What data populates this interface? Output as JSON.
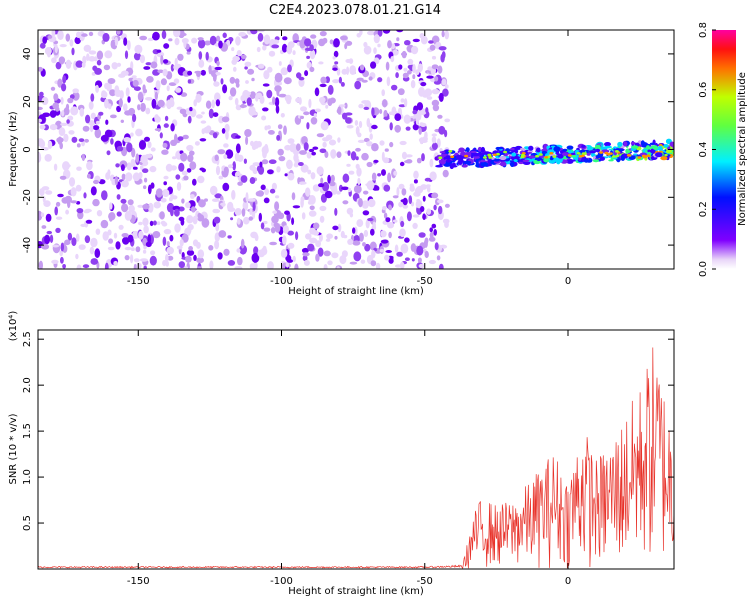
{
  "title": "C2E4.2023.078.01.21.G14",
  "chart_data": [
    {
      "type": "heatmap",
      "xlabel": "Height of straight line (km)",
      "ylabel": "Frequency (Hz)",
      "xlim": [
        -185,
        37
      ],
      "ylim": [
        -50,
        50
      ],
      "xticks": [
        -150,
        -100,
        -50,
        0
      ],
      "yticks": [
        40,
        20,
        0,
        -20,
        -40
      ],
      "colorbar": {
        "label": "Normalized spectral amplitude",
        "range": [
          0.0,
          0.8
        ],
        "ticks": [
          "0.0",
          "0.2",
          "0.4",
          "0.6",
          "0.8"
        ]
      },
      "regions": [
        {
          "x_range": [
            -185,
            -45
          ],
          "y_range": [
            -50,
            50
          ],
          "description": "noise",
          "amplitude_range": [
            0.0,
            0.1
          ]
        },
        {
          "x_range": [
            -45,
            37
          ],
          "y_center_start": -4,
          "y_center_end": 0,
          "description": "signal band",
          "amplitude_range": [
            0.1,
            0.8
          ]
        }
      ]
    },
    {
      "type": "line",
      "xlabel": "Height of straight line (km)",
      "ylabel": "SNR (10 * v/v)",
      "y_multiplier": "(x10⁴)",
      "xlim": [
        -185,
        37
      ],
      "ylim": [
        0,
        2.6
      ],
      "xticks": [
        -150,
        -100,
        -50,
        0
      ],
      "yticks": [
        "0.5",
        "1.0",
        "1.5",
        "2.0",
        "2.5"
      ],
      "series": [
        {
          "color": "#e8332b",
          "x": [
            -185,
            -150,
            -100,
            -50,
            -37,
            -35,
            -33,
            -30,
            -25,
            -20,
            -15,
            -10,
            -5,
            0,
            5,
            10,
            15,
            20,
            25,
            30,
            35,
            37
          ],
          "y": [
            0.02,
            0.02,
            0.02,
            0.02,
            0.03,
            0.3,
            0.6,
            0.8,
            0.7,
            0.75,
            0.9,
            1.1,
            1.3,
            1.0,
            1.6,
            1.2,
            1.4,
            1.7,
            2.0,
            2.5,
            1.8,
            1.5
          ]
        }
      ]
    }
  ]
}
